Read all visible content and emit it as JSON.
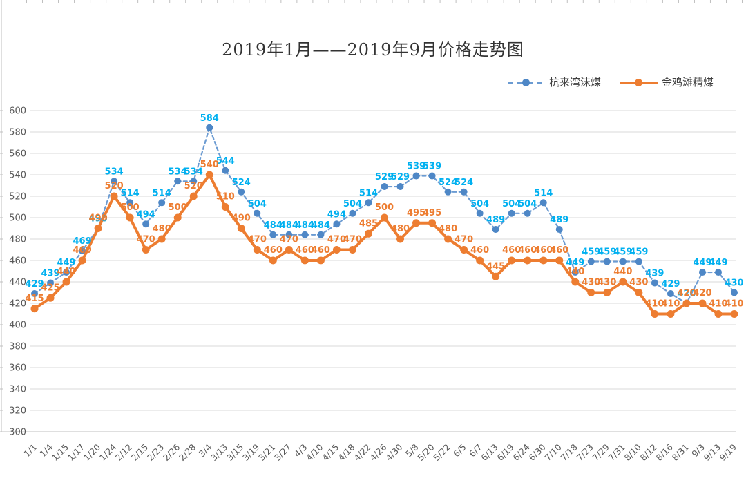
{
  "title": "2019年1月——2019年9月价格走势图",
  "chart_data": {
    "type": "line",
    "title": "2019年1月——2019年9月价格走势图",
    "categories": [
      "1/1",
      "1/4",
      "1/15",
      "1/17",
      "1/20",
      "1/24",
      "2/12",
      "2/15",
      "2/23",
      "2/26",
      "2/28",
      "3/4",
      "3/13",
      "3/15",
      "3/19",
      "3/21",
      "3/27",
      "4/3",
      "4/10",
      "4/15",
      "4/18",
      "4/22",
      "4/26",
      "4/30",
      "5/8",
      "5/20",
      "5/22",
      "6/5",
      "6/7",
      "6/13",
      "6/19",
      "6/24",
      "6/30",
      "7/10",
      "7/18",
      "7/23",
      "7/29",
      "7/31",
      "8/10",
      "8/12",
      "8/16",
      "8/31",
      "9/3",
      "9/13",
      "9/19"
    ],
    "series": [
      {
        "name": "杭来湾沫煤",
        "style": "dashed",
        "line_color": "#6B9BD2",
        "marker_color": "#4E87C6",
        "label_color": "#00B0F0",
        "values": [
          429,
          439,
          449,
          469,
          490,
          534,
          514,
          494,
          514,
          534,
          534,
          584,
          544,
          524,
          504,
          484,
          484,
          484,
          484,
          494,
          504,
          514,
          529,
          529,
          539,
          539,
          524,
          524,
          504,
          489,
          504,
          504,
          514,
          489,
          449,
          459,
          459,
          459,
          459,
          439,
          429,
          420,
          449,
          449,
          430
        ]
      },
      {
        "name": "金鸡滩精煤",
        "style": "solid",
        "line_color": "#ED7D31",
        "marker_color": "#ED7D31",
        "label_color": "#ED7D31",
        "values": [
          415,
          425,
          440,
          460,
          490,
          520,
          500,
          470,
          480,
          500,
          520,
          540,
          510,
          490,
          470,
          460,
          470,
          460,
          460,
          470,
          470,
          485,
          500,
          480,
          495,
          495,
          480,
          470,
          460,
          445,
          460,
          460,
          460,
          460,
          440,
          430,
          430,
          440,
          430,
          410,
          410,
          420,
          420,
          410,
          410
        ]
      }
    ],
    "ylim": [
      300,
      600
    ],
    "ytick_step": 20,
    "grid": true,
    "grid_color": "#D9D9D9",
    "axis_color": "#BFBFBF",
    "axis_text_color": "#595959",
    "legend_position": "top-right",
    "data_labels": true
  }
}
